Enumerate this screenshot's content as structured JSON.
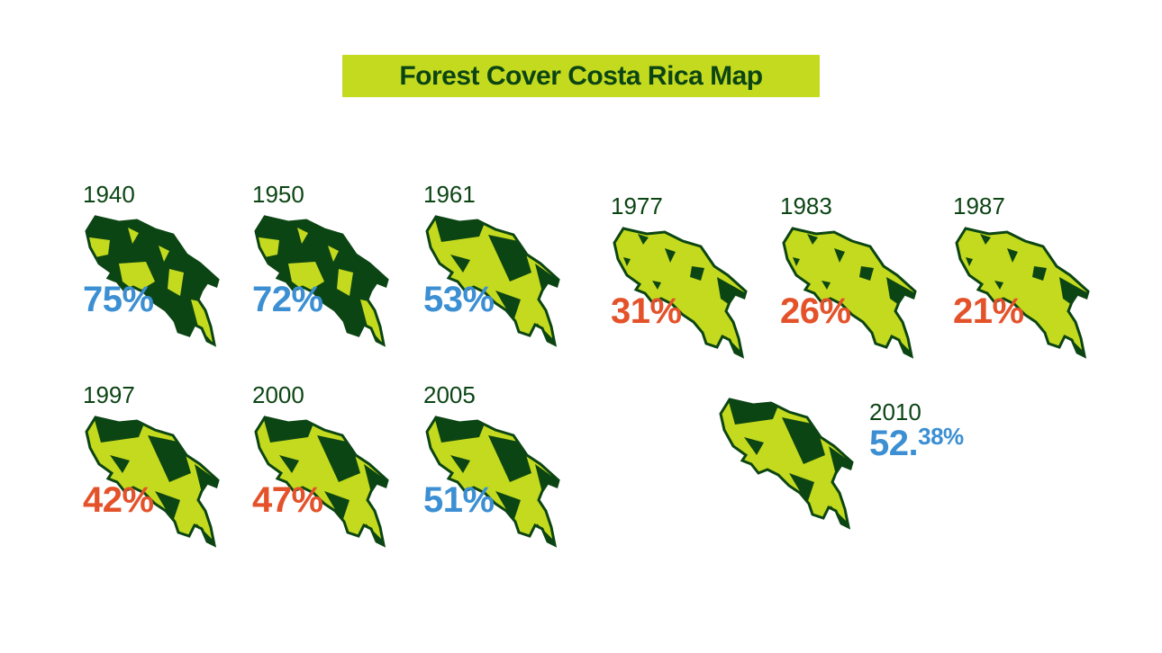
{
  "header": {
    "title": "Forest Cover Costa Rica Map"
  },
  "panels": [
    {
      "year": "1940",
      "cover": "75%"
    },
    {
      "year": "1950",
      "cover": "72%"
    },
    {
      "year": "1961",
      "cover": "53%"
    },
    {
      "year": "1977",
      "cover": "31%"
    },
    {
      "year": "1983",
      "cover": "26%"
    },
    {
      "year": "1987",
      "cover": "21%"
    },
    {
      "year": "1997",
      "cover": "42%"
    },
    {
      "year": "2000",
      "cover": "47%"
    },
    {
      "year": "2005",
      "cover": "51%"
    },
    {
      "year": "2010",
      "cover": "52.",
      "cover_decimal": "38%"
    }
  ]
}
